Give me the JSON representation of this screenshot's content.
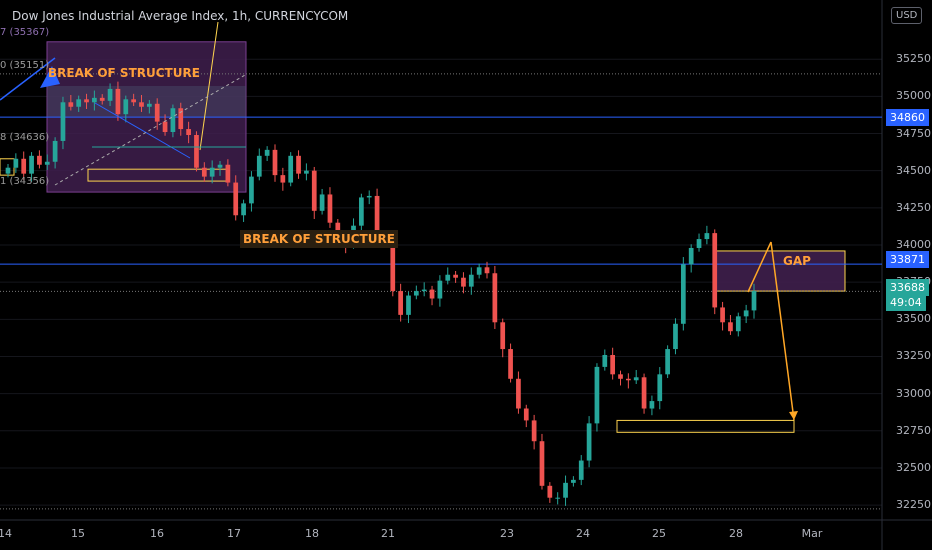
{
  "header": {
    "title": "Dow Jones Industrial Average Index, 1h, CURRENCYCOM",
    "currency": "USD"
  },
  "indicator_labels": [
    {
      "text": "7 (35367)"
    },
    {
      "text": "0 (35151)"
    },
    {
      "text": "8 (34636)"
    },
    {
      "text": "1 (34356)"
    }
  ],
  "annotations": {
    "bos_top": "BREAK OF STRUCTURE",
    "bos_mid": "BREAK OF STRUCTURE",
    "gap": "GAP"
  },
  "price_tags": {
    "top_line": "34860",
    "mid_line": "33871",
    "last": "33688",
    "countdown": "49:04"
  },
  "colors": {
    "background": "#000000",
    "up": "#26a69a",
    "down": "#ef5350",
    "hline": "#2962ff",
    "annotation": "#ffa726",
    "zone": "#7b3f91"
  },
  "chart_data": {
    "type": "candlestick",
    "symbol": "Dow Jones Industrial Average Index",
    "interval": "1h",
    "y_ticks": [
      35250,
      35000,
      34750,
      34500,
      34250,
      34000,
      33750,
      33500,
      33250,
      33000,
      32750,
      32500,
      32250
    ],
    "ylim": [
      32150,
      35480
    ],
    "x_ticks": [
      "14",
      "15",
      "16",
      "17",
      "18",
      "21",
      "23",
      "24",
      "25",
      "28",
      "Mar"
    ],
    "series": [
      {
        "name": "close",
        "values": [
          34520,
          34580,
          34480,
          34600,
          34540,
          34560,
          34700,
          34960,
          34930,
          34980,
          34960,
          34990,
          34970,
          35050,
          34880,
          34980,
          34960,
          34930,
          34950,
          34830,
          34760,
          34920,
          34780,
          34740,
          34520,
          34460,
          34520,
          34540,
          34420,
          34200,
          34280,
          34460,
          34600,
          34640,
          34470,
          34420,
          34600,
          34480,
          34500,
          34230,
          34340,
          34150,
          34050,
          34000,
          34130,
          34320,
          34330,
          34060,
          34030,
          33690,
          33530,
          33660,
          33690,
          33700,
          33640,
          33760,
          33800,
          33780,
          33720,
          33800,
          33850,
          33810,
          33480,
          33300,
          33100,
          32900,
          32820,
          32680,
          32380,
          32300,
          32300,
          32400,
          32420,
          32550,
          32800,
          33180,
          33260,
          33130,
          33100,
          33090,
          33110,
          32900,
          32950,
          33130,
          33300,
          33470,
          33870,
          33980,
          34040,
          34080,
          33580,
          33480,
          33420,
          33520,
          33560,
          33690
        ]
      },
      {
        "name": "horizontal_levels",
        "values": [
          34860,
          33871,
          33688,
          35151,
          32225
        ]
      }
    ],
    "zones": [
      {
        "label": "",
        "from": 34356,
        "to": 35367
      },
      {
        "label": "GAP",
        "from": 33690,
        "to": 33960
      },
      {
        "label": "",
        "from": 32740,
        "to": 32820
      }
    ]
  }
}
